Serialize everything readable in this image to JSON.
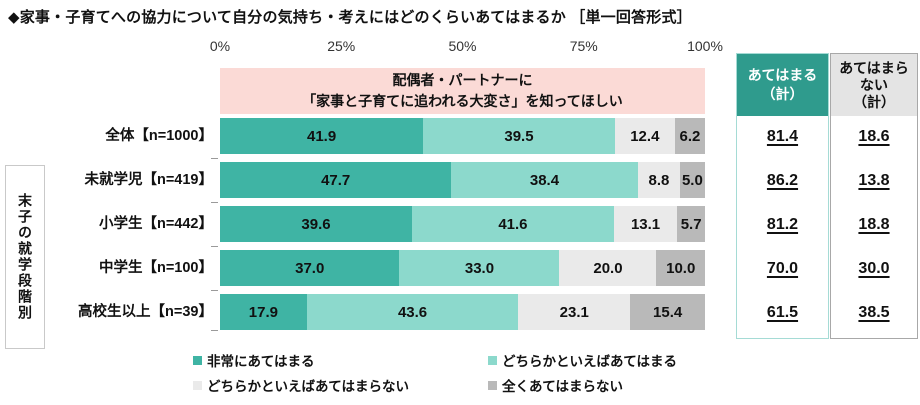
{
  "title": "◆家事・子育てへの協力について自分の気持ち・考えにはどのくらいあてはまるか ［単一回答形式］",
  "question_box": {
    "lines": [
      "配偶者・パートナーに",
      "「家事と子育てに追われる大変さ」を知ってほしい"
    ],
    "bg": "#FBDAD6"
  },
  "group_label": "末子の就学段階別",
  "chart_data": {
    "type": "bar",
    "stacked": true,
    "orientation": "horizontal",
    "xlim": [
      0,
      100
    ],
    "x_ticks": [
      "0%",
      "25%",
      "50%",
      "75%",
      "100%"
    ],
    "categories": [
      "全体【n=1000】",
      "未就学児【n=419】",
      "小学生【n=442】",
      "中学生【n=100】",
      "高校生以上【n=39】"
    ],
    "series": [
      {
        "name": "非常にあてはまる",
        "color": "#3FB4A4",
        "values": [
          41.9,
          47.7,
          39.6,
          37.0,
          17.9
        ]
      },
      {
        "name": "どちらかといえばあてはまる",
        "color": "#8CD9CC",
        "values": [
          39.5,
          38.4,
          41.6,
          33.0,
          43.6
        ]
      },
      {
        "name": "どちらかといえばあてはまらない",
        "color": "#EAEAEA",
        "values": [
          12.4,
          8.8,
          13.1,
          20.0,
          23.1
        ]
      },
      {
        "name": "全くあてはまらない",
        "color": "#B9B9B9",
        "values": [
          6.2,
          5.0,
          5.7,
          10.0,
          15.4
        ]
      }
    ]
  },
  "summary_columns": [
    {
      "id": "agree-total",
      "header_lines": [
        "あてはまる",
        "（計）"
      ],
      "header_bg": "#2F9B8D",
      "header_color": "#ffffff",
      "border": "#A5DBD5",
      "values": [
        81.4,
        86.2,
        81.2,
        70.0,
        61.5
      ]
    },
    {
      "id": "disagree-total",
      "header_lines": [
        "あてはまら",
        "ない",
        "（計）"
      ],
      "header_bg": "#E4E4E4",
      "header_color": "#111111",
      "border": "#A8A8A8",
      "values": [
        18.6,
        13.8,
        18.8,
        30.0,
        38.5
      ]
    }
  ],
  "legend": [
    {
      "label": "非常にあてはまる",
      "color": "#3FB4A4"
    },
    {
      "label": "どちらかといえばあてはまる",
      "color": "#8CD9CC"
    },
    {
      "label": "どちらかといえばあてはまらない",
      "color": "#EAEAEA"
    },
    {
      "label": "全くあてはまらない",
      "color": "#B9B9B9"
    }
  ]
}
